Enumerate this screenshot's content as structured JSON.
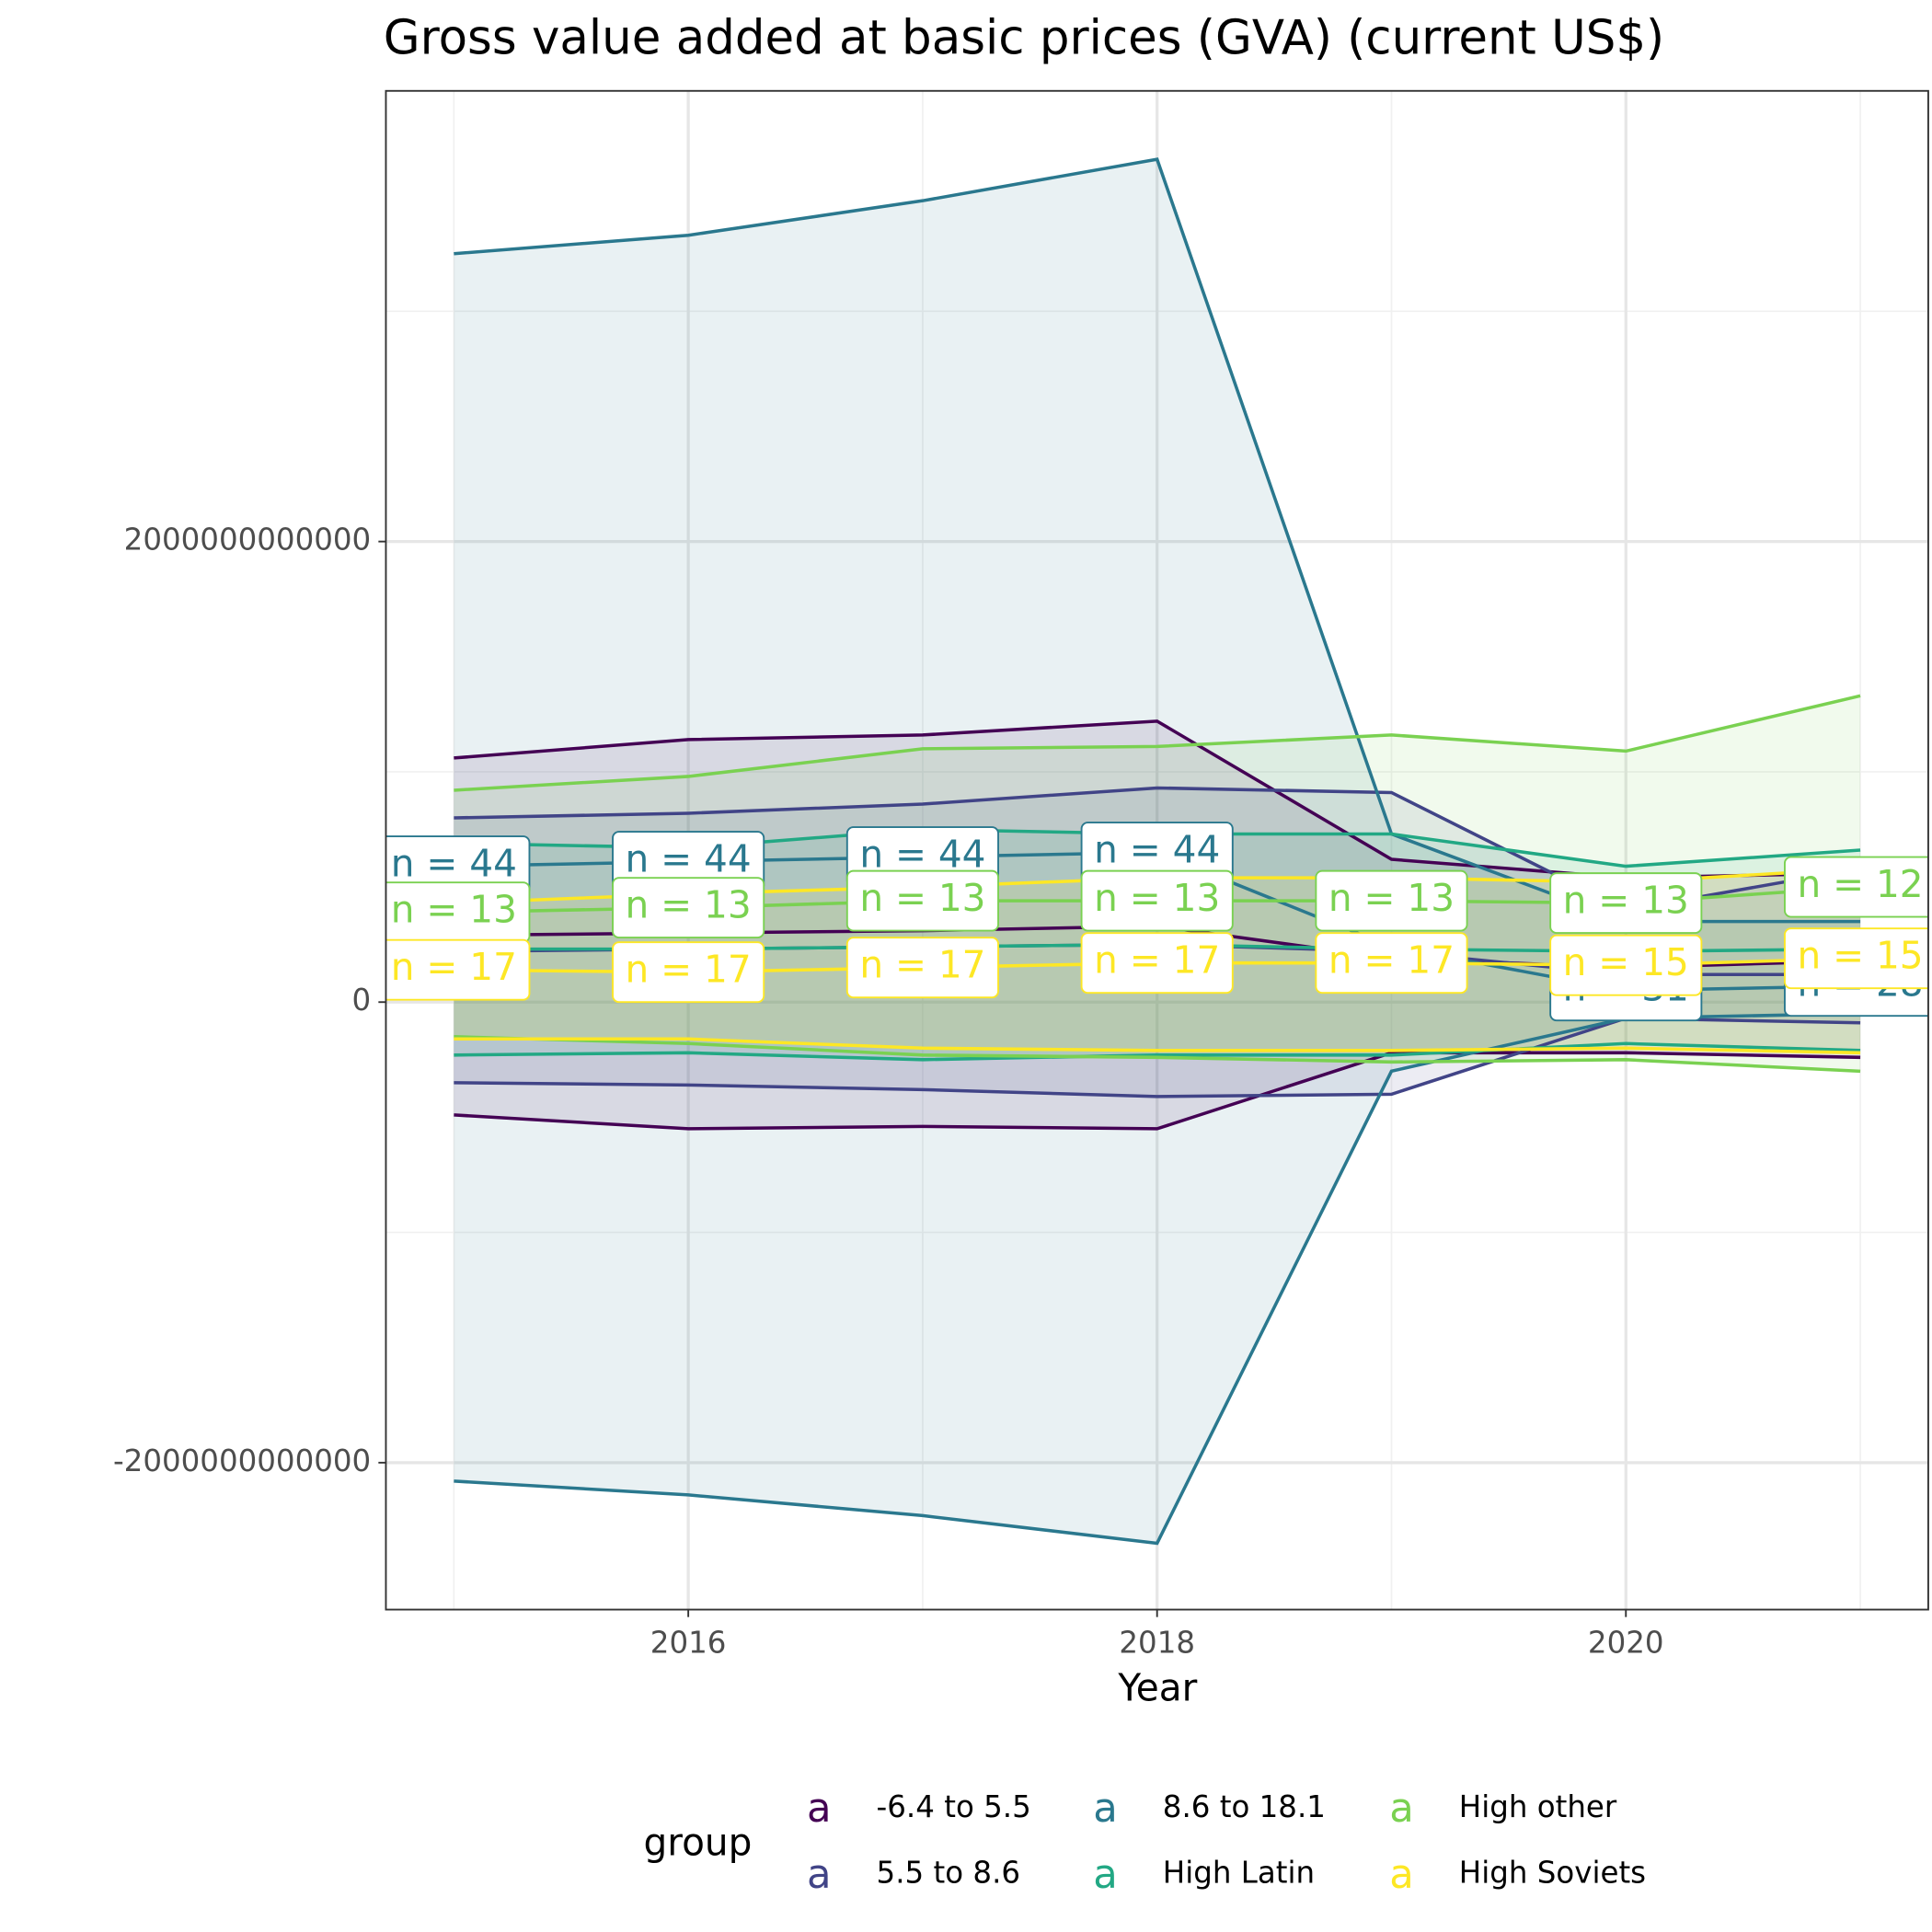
{
  "chart_data": {
    "type": "ribbon-line",
    "title": "Gross value added at basic prices (GVA) (current US$)",
    "x_label": "Year",
    "legend_title": "group",
    "legend_key_glyph": "a",
    "legend_position": "bottom",
    "grid": true,
    "x": [
      2015,
      2016,
      2017,
      2018,
      2019,
      2020,
      2021
    ],
    "xlim": [
      2014.71,
      2021.29
    ],
    "xticks": [
      2016,
      2018,
      2020
    ],
    "ylim": [
      -2638000000000.0,
      3957000000000.0
    ],
    "yticks": [
      -2000000000000.0,
      0,
      2000000000000.0
    ],
    "series": [
      {
        "name": "-6.4 to 5.5",
        "color": "#440154",
        "values": [
          290000000000.0,
          300000000000.0,
          310000000000.0,
          330000000000.0,
          190000000000.0,
          150000000000.0,
          180000000000.0
        ],
        "upper": [
          1060000000000.0,
          1140000000000.0,
          1160000000000.0,
          1220000000000.0,
          620000000000.0,
          540000000000.0,
          560000000000.0
        ],
        "lower": [
          -490000000000.0,
          -550000000000.0,
          -540000000000.0,
          -550000000000.0,
          -220000000000.0,
          -220000000000.0,
          -240000000000.0
        ]
      },
      {
        "name": "5.5 to 8.6",
        "color": "#414487",
        "values": [
          220000000000.0,
          230000000000.0,
          240000000000.0,
          250000000000.0,
          220000000000.0,
          120000000000.0,
          120000000000.0
        ],
        "upper": [
          800000000000.0,
          820000000000.0,
          860000000000.0,
          930000000000.0,
          910000000000.0,
          400000000000.0,
          580000000000.0
        ],
        "lower": [
          -350000000000.0,
          -360000000000.0,
          -380000000000.0,
          -410000000000.0,
          -400000000000.0,
          -70000000000.0,
          -90000000000.0
        ]
      },
      {
        "name": "8.6 to 18.1",
        "color": "#2A788E",
        "values": [
          590000000000.0,
          610000000000.0,
          630000000000.0,
          650000000000.0,
          240000000000.0,
          50000000000.0,
          70000000000.0
        ],
        "upper": [
          3250000000000.0,
          3330000000000.0,
          3480000000000.0,
          3660000000000.0,
          730000000000.0,
          350000000000.0,
          350000000000.0
        ],
        "lower": [
          -2080000000000.0,
          -2140000000000.0,
          -2230000000000.0,
          -2350000000000.0,
          -300000000000.0,
          -70000000000.0,
          -50000000000.0
        ],
        "n_labels": [
          "n = 44",
          "n = 44",
          "n = 44",
          "n = 44",
          null,
          "n = 31",
          "n = 28"
        ]
      },
      {
        "name": "High Latin",
        "color": "#22A884",
        "values": [
          230000000000.0,
          230000000000.0,
          240000000000.0,
          250000000000.0,
          230000000000.0,
          220000000000.0,
          230000000000.0
        ],
        "upper": [
          690000000000.0,
          670000000000.0,
          750000000000.0,
          730000000000.0,
          730000000000.0,
          590000000000.0,
          660000000000.0
        ],
        "lower": [
          -230000000000.0,
          -220000000000.0,
          -250000000000.0,
          -230000000000.0,
          -230000000000.0,
          -180000000000.0,
          -210000000000.0
        ]
      },
      {
        "name": "High other",
        "color": "#7AD151",
        "values": [
          390000000000.0,
          410000000000.0,
          440000000000.0,
          440000000000.0,
          440000000000.0,
          430000000000.0,
          500000000000.0
        ],
        "upper": [
          920000000000.0,
          980000000000.0,
          1100000000000.0,
          1110000000000.0,
          1160000000000.0,
          1090000000000.0,
          1330000000000.0
        ],
        "lower": [
          -150000000000.0,
          -180000000000.0,
          -230000000000.0,
          -240000000000.0,
          -260000000000.0,
          -250000000000.0,
          -300000000000.0
        ],
        "n_labels": [
          "n = 13",
          "n = 13",
          "n = 13",
          "n = 13",
          "n = 13",
          "n = 13",
          "n = 12"
        ]
      },
      {
        "name": "High Soviets",
        "color": "#FDE725",
        "values": [
          140000000000.0,
          130000000000.0,
          150000000000.0,
          170000000000.0,
          170000000000.0,
          160000000000.0,
          190000000000.0
        ],
        "upper": [
          430000000000.0,
          470000000000.0,
          500000000000.0,
          540000000000.0,
          540000000000.0,
          520000000000.0,
          580000000000.0
        ],
        "lower": [
          -160000000000.0,
          -160000000000.0,
          -200000000000.0,
          -210000000000.0,
          -210000000000.0,
          -200000000000.0,
          -220000000000.0
        ],
        "n_labels": [
          "n = 17",
          "n = 17",
          "n = 17",
          "n = 17",
          "n = 17",
          "n = 15",
          "n = 15"
        ]
      }
    ]
  }
}
